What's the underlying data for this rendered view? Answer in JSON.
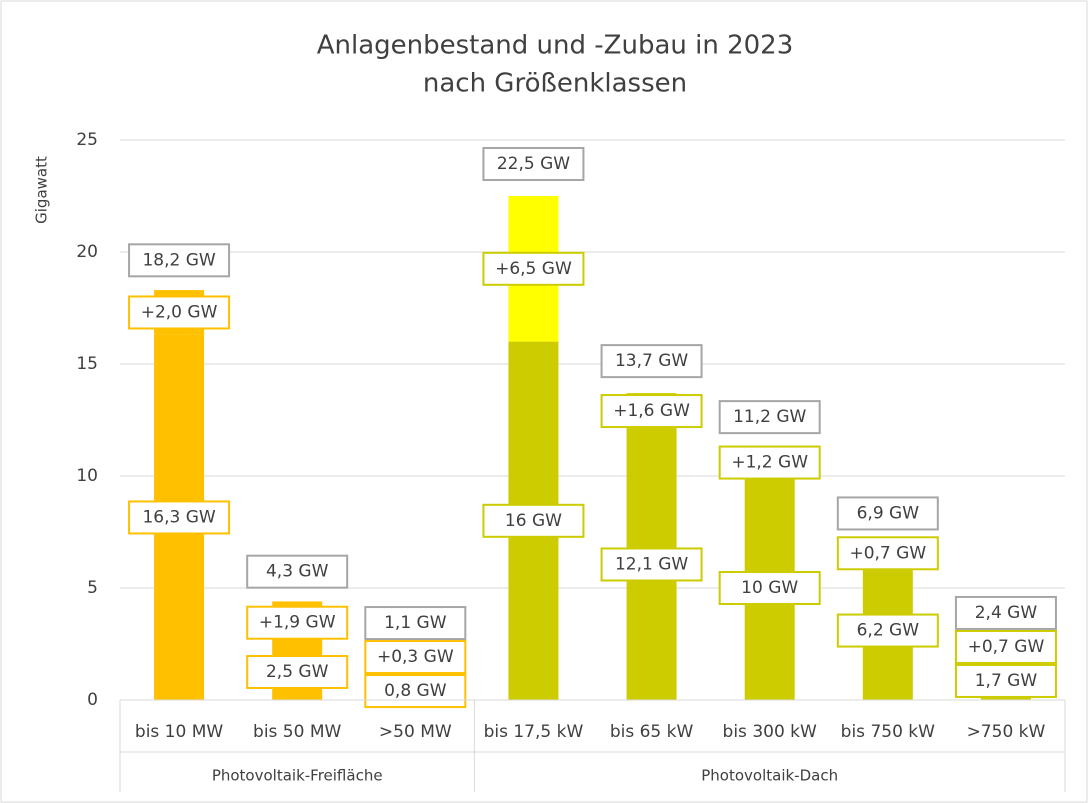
{
  "chart_data": {
    "type": "stacked_bar",
    "title": [
      "Anlagenbestand und -Zubau in 2023",
      "nach Größenklassen"
    ],
    "y_label": "Gigawatt",
    "categories": [
      "bis 10 MW",
      "bis 50 MW",
      ">50 MW",
      "bis 17,5 kW",
      "bis 65 kW",
      "bis 300 kW",
      "bis 750 kW",
      ">750 kW"
    ],
    "groups": [
      {
        "label": "Photovoltaik-Freifläche",
        "size": 3
      },
      {
        "label": "Photovoltaik-Dach",
        "size": 5
      }
    ],
    "series": [
      {
        "colors": [
          "#FFC000",
          "#FFC000",
          "#FFC000",
          "#CCCC00",
          "#CCCC00",
          "#CCCC00",
          "#CCCC00",
          "#CCCC00"
        ],
        "values": [
          16.3,
          2.5,
          0.8,
          16,
          12.1,
          10,
          6.2,
          1.7
        ],
        "value_labels": [
          "16,3 GW",
          "2,5 GW",
          "0,8 GW",
          "16 GW",
          "12,1 GW",
          "10 GW",
          "6,2 GW",
          "1,7 GW"
        ]
      },
      {
        "colors": [
          "#FFC000",
          "#FFC000",
          "#FFC000",
          "#FFFF00",
          "#CCCC00",
          "#CCCC00",
          "#CCCC00",
          "#FFFF00"
        ],
        "values": [
          2.0,
          1.9,
          0.3,
          6.5,
          1.6,
          1.2,
          0.7,
          0.7
        ],
        "value_labels": [
          "+2,0 GW",
          "+1,9 GW",
          "+0,3 GW",
          "+6,5 GW",
          "+1,6 GW",
          "+1,2 GW",
          "+0,7 GW",
          "+0,7 GW"
        ]
      }
    ],
    "totals": {
      "values": [
        18.2,
        4.3,
        1.1,
        22.5,
        13.7,
        11.2,
        6.9,
        2.4
      ],
      "value_labels": [
        "18,2 GW",
        "4,3 GW",
        "1,1 GW",
        "22,5 GW",
        "13,7 GW",
        "11,2 GW",
        "6,9 GW",
        "2,4 GW"
      ]
    },
    "ylim": [
      0,
      25
    ],
    "yticks": [
      0,
      5,
      10,
      15,
      20,
      25
    ],
    "grid": true
  }
}
